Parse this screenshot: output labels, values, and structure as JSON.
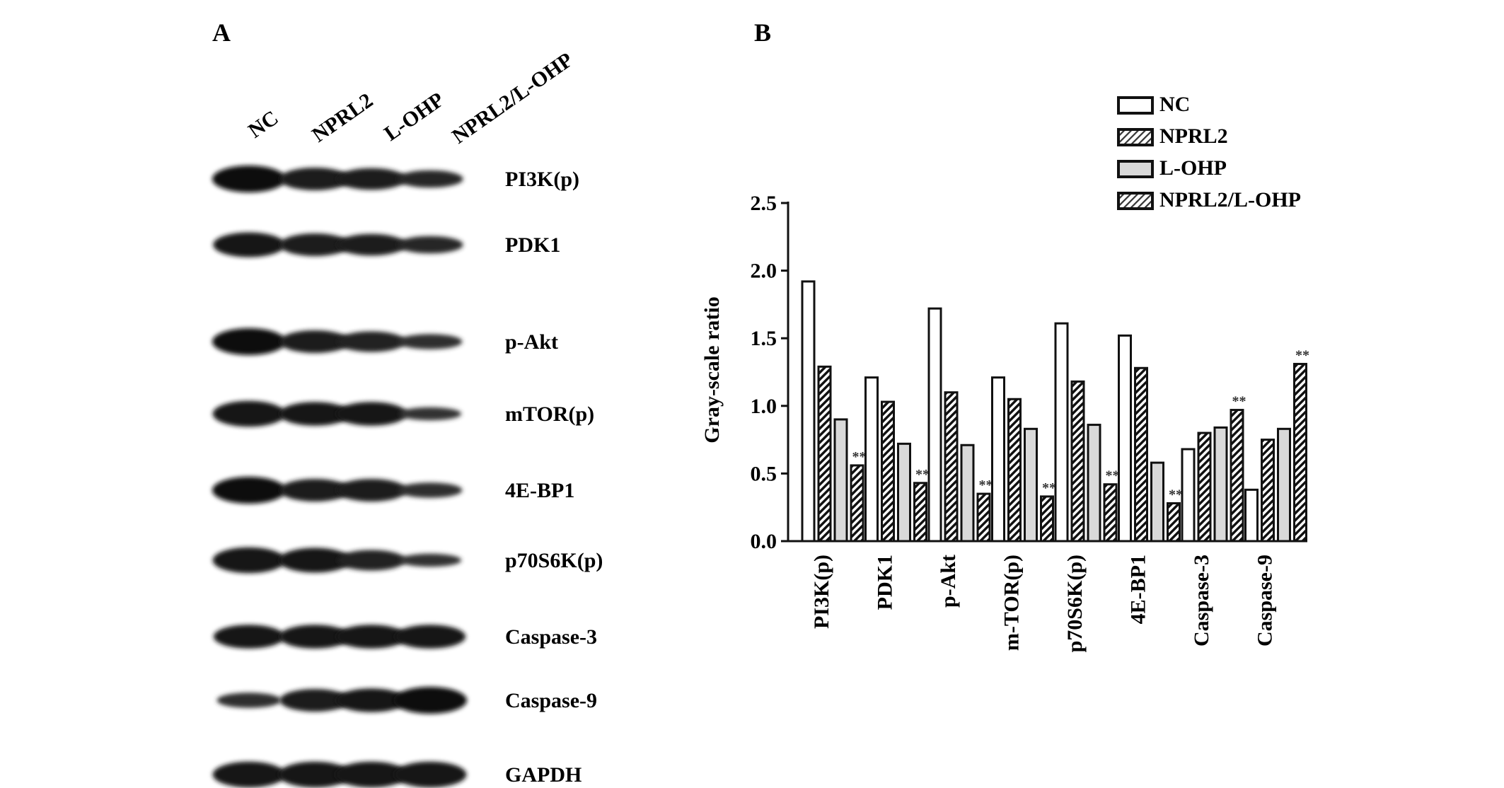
{
  "panels": {
    "a": {
      "letter": "A",
      "lanes": [
        "NC",
        "NPRL2",
        "L-OHP",
        "NPRL2/L-OHP"
      ],
      "blots": [
        {
          "protein": "PI3K(p)",
          "intensity": [
            1.0,
            0.8,
            0.75,
            0.55
          ]
        },
        {
          "protein": "PDK1",
          "intensity": [
            0.9,
            0.8,
            0.75,
            0.55
          ]
        },
        {
          "protein": "p-Akt",
          "intensity": [
            1.0,
            0.8,
            0.7,
            0.45
          ]
        },
        {
          "protein": "mTOR(p)",
          "intensity": [
            0.95,
            0.85,
            0.85,
            0.35
          ]
        },
        {
          "protein": "4E-BP1",
          "intensity": [
            1.0,
            0.8,
            0.8,
            0.45
          ]
        },
        {
          "protein": "p70S6K(p)",
          "intensity": [
            0.95,
            0.9,
            0.7,
            0.35
          ]
        },
        {
          "protein": "Caspase-3",
          "intensity": [
            0.85,
            0.85,
            0.85,
            0.85
          ]
        },
        {
          "protein": "Caspase-9",
          "intensity": [
            0.45,
            0.8,
            0.85,
            1.0
          ]
        },
        {
          "protein": "GAPDH",
          "intensity": [
            0.95,
            0.95,
            0.95,
            0.95
          ]
        }
      ]
    },
    "b": {
      "letter": "B"
    }
  },
  "chart_data": {
    "type": "bar",
    "title": "",
    "xlabel": "",
    "ylabel": "Gray-scale ratio",
    "ylim": [
      0,
      2.5
    ],
    "yticks": [
      "0.0",
      "0.5",
      "1.0",
      "1.5",
      "2.0",
      "2.5"
    ],
    "categories": [
      "PI3K(p)",
      "PDK1",
      "p-Akt",
      "m-TOR(p)",
      "p70S6K(p)",
      "4E-BP1",
      "Caspase-3",
      "Caspase-9"
    ],
    "series": [
      {
        "name": "NC",
        "values": [
          1.92,
          1.21,
          1.72,
          1.21,
          1.61,
          1.52,
          0.68,
          0.38
        ]
      },
      {
        "name": "NPRL2",
        "values": [
          1.29,
          1.03,
          1.1,
          1.05,
          1.18,
          1.28,
          0.8,
          0.75
        ]
      },
      {
        "name": "L-OHP",
        "values": [
          0.9,
          0.72,
          0.71,
          0.83,
          0.86,
          0.58,
          0.84,
          0.83
        ]
      },
      {
        "name": "NPRL2/L-OHP",
        "values": [
          0.56,
          0.43,
          0.35,
          0.33,
          0.42,
          0.28,
          0.97,
          1.31
        ]
      }
    ],
    "significance": [
      {
        "category": "PI3K(p)",
        "series": "NPRL2/L-OHP",
        "text": "**"
      },
      {
        "category": "PDK1",
        "series": "NPRL2/L-OHP",
        "text": "**"
      },
      {
        "category": "p-Akt",
        "series": "NPRL2/L-OHP",
        "text": "**"
      },
      {
        "category": "m-TOR(p)",
        "series": "NPRL2/L-OHP",
        "text": "**"
      },
      {
        "category": "p70S6K(p)",
        "series": "NPRL2/L-OHP",
        "text": "**"
      },
      {
        "category": "4E-BP1",
        "series": "NPRL2/L-OHP",
        "text": "**"
      },
      {
        "category": "Caspase-3",
        "series": "NPRL2/L-OHP",
        "text": "**"
      },
      {
        "category": "Caspase-9",
        "series": "NPRL2/L-OHP",
        "text": "**"
      }
    ],
    "legend_position": "top-right",
    "grid": false
  }
}
